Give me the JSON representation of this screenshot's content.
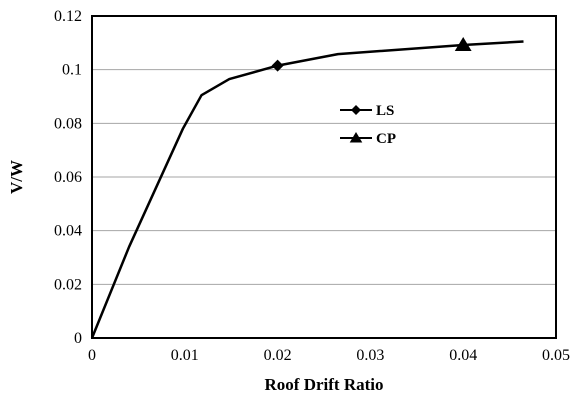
{
  "chart_data": {
    "type": "line",
    "title": "",
    "xlabel": "Roof Drift Ratio",
    "ylabel": "V/W",
    "xlim": [
      0,
      0.05
    ],
    "ylim": [
      0,
      0.12
    ],
    "x_ticks": [
      "0",
      "0.01",
      "0.02",
      "0.03",
      "0.04",
      "0.05"
    ],
    "y_ticks": [
      "0",
      "0.02",
      "0.04",
      "0.06",
      "0.08",
      "0.1",
      "0.12"
    ],
    "grid": "horizontal",
    "legend_position": "center",
    "curve": {
      "x": [
        0,
        0.004,
        0.0098,
        0.0118,
        0.0148,
        0.02,
        0.0265,
        0.04,
        0.0465
      ],
      "y": [
        0,
        0.034,
        0.078,
        0.0905,
        0.0965,
        0.1015,
        0.1058,
        0.1092,
        0.1105
      ]
    },
    "series": [
      {
        "name": "LS",
        "marker": "diamond",
        "x": [
          0.02
        ],
        "y": [
          0.1015
        ]
      },
      {
        "name": "CP",
        "marker": "triangle",
        "x": [
          0.04
        ],
        "y": [
          0.1092
        ]
      }
    ],
    "colors": {
      "line": "#000000",
      "grid": "#a6a6a6",
      "frame": "#000000"
    }
  }
}
